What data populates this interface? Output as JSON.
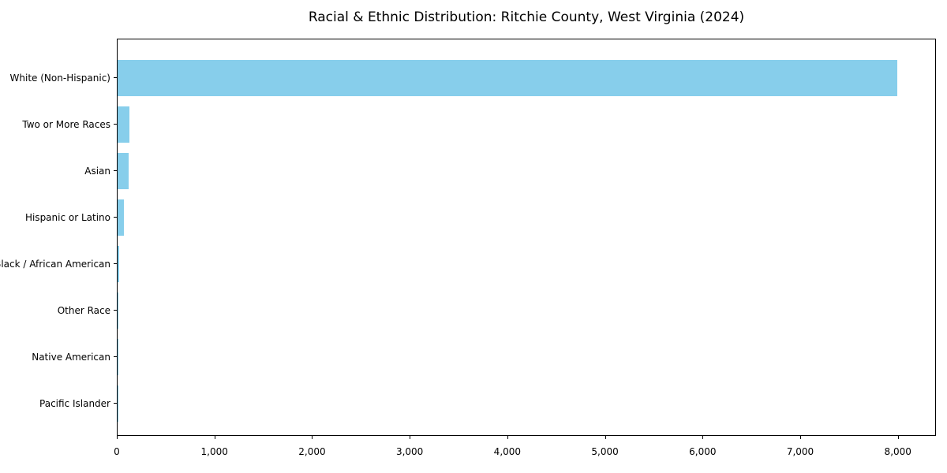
{
  "chart_data": {
    "type": "bar",
    "orientation": "horizontal",
    "title": "Racial & Ethnic Distribution: Ritchie County, West Virginia (2024)",
    "categories": [
      "White (Non-Hispanic)",
      "Two or More Races",
      "Asian",
      "Hispanic or Latino",
      "Black / African American",
      "Other Race",
      "Native American",
      "Pacific Islander"
    ],
    "values": [
      7985,
      120,
      112,
      65,
      14,
      5,
      3,
      1
    ],
    "xlabel": "",
    "ylabel": "",
    "xlim": [
      0,
      8390
    ],
    "xticks": [
      0,
      1000,
      2000,
      3000,
      4000,
      5000,
      6000,
      7000,
      8000
    ],
    "xtick_labels": [
      "0",
      "1,000",
      "2,000",
      "3,000",
      "4,000",
      "5,000",
      "6,000",
      "7,000",
      "8,000"
    ],
    "grid": false,
    "legend_position": "none",
    "bar_color": "#87CEEB",
    "axis_color": "#000000",
    "text_color": "#000000",
    "background_color": "#ffffff"
  }
}
